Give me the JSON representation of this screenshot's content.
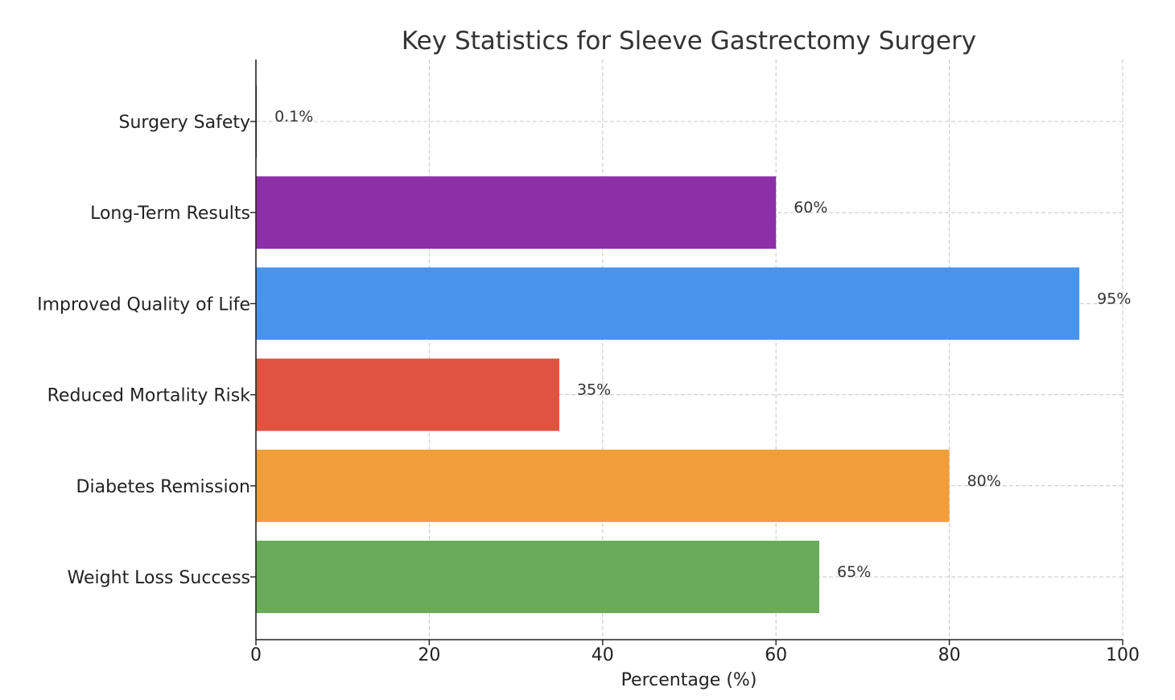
{
  "chart_data": {
    "type": "bar",
    "orientation": "horizontal",
    "title": "Key Statistics for Sleeve Gastrectomy Surgery",
    "xlabel": "Percentage (%)",
    "ylabel": "",
    "xlim": [
      0,
      100
    ],
    "xticks": [
      0,
      20,
      40,
      60,
      80,
      100
    ],
    "grid": true,
    "categories": [
      "Weight Loss Success",
      "Diabetes Remission",
      "Reduced Mortality Risk",
      "Improved Quality of Life",
      "Long-Term Results",
      "Surgery Safety"
    ],
    "values": [
      65,
      80,
      35,
      95,
      60,
      0.1
    ],
    "value_labels": [
      "65%",
      "80%",
      "35%",
      "95%",
      "60%",
      "0.1%"
    ],
    "colors": [
      "#69ab5a",
      "#f09e39",
      "#e05340",
      "#4993ec",
      "#8d30a8",
      "#333333"
    ]
  }
}
